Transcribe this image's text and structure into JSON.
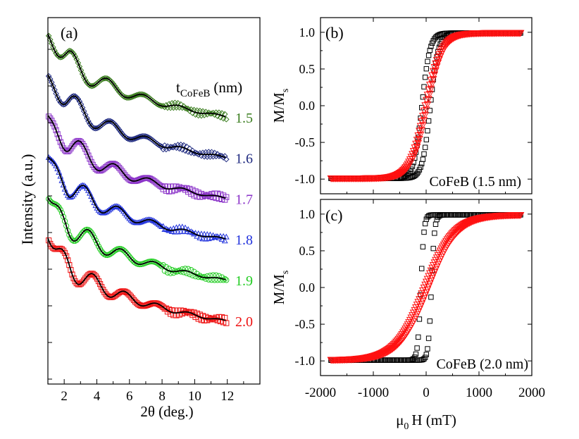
{
  "chart_data": [
    {
      "id": "a",
      "type": "line",
      "panel_label": "(a)",
      "xlabel": "2θ (deg.)",
      "ylabel": "Intensity (a.u.)",
      "xlim": [
        1,
        14
      ],
      "x_ticks": [
        2,
        4,
        6,
        8,
        10,
        12
      ],
      "legend_title": "t",
      "legend_title_sub": "CoFeB",
      "legend_title_unit": "(nm)",
      "series": [
        {
          "name": "1.5",
          "color": "#3a7d1e",
          "marker": "diamond",
          "offset": 0.0
        },
        {
          "name": "1.6",
          "color": "#1f2a80",
          "marker": "diamond",
          "offset": 1.0
        },
        {
          "name": "1.7",
          "color": "#8a32c8",
          "marker": "square",
          "offset": 2.0
        },
        {
          "name": "1.8",
          "color": "#2233dd",
          "marker": "triangle",
          "offset": 3.0
        },
        {
          "name": "1.9",
          "color": "#22cc22",
          "marker": "circle",
          "offset": 4.0
        },
        {
          "name": "2.0",
          "color": "#ee1111",
          "marker": "square",
          "offset": 5.0
        }
      ],
      "fit_color": "#000000"
    },
    {
      "id": "b",
      "type": "scatter",
      "panel_label": "(b)",
      "annotation": "CoFeB (1.5 nm)",
      "xlabel": "",
      "ylabel": "M/M",
      "ylabel_sub": "s",
      "xlim": [
        -2000,
        2000
      ],
      "ylim": [
        -1.2,
        1.2
      ],
      "y_ticks": [
        "1.0",
        "0.5",
        "0.0",
        "-0.5",
        "-1.0"
      ],
      "series": [
        {
          "name": "square",
          "color": "#000000",
          "marker": "square",
          "hc": 80,
          "width": 150
        },
        {
          "name": "triangle",
          "color": "#ff1111",
          "marker": "triangle-down",
          "hc": 20,
          "width": 300
        }
      ]
    },
    {
      "id": "c",
      "type": "scatter",
      "panel_label": "(c)",
      "annotation": "CoFeB (2.0 nm)",
      "xlabel": "H (mT)",
      "xlabel_prefix": "μ",
      "xlabel_sub": "0",
      "ylabel": "M/M",
      "ylabel_sub": "s",
      "xlim": [
        -2000,
        2000
      ],
      "ylim": [
        -1.2,
        1.2
      ],
      "x_ticks": [
        "-2000",
        "-1000",
        "0",
        "1000",
        "2000"
      ],
      "y_ticks": [
        "1.0",
        "0.5",
        "0.0",
        "-0.5",
        "-1.0"
      ],
      "series": [
        {
          "name": "square",
          "color": "#000000",
          "marker": "square",
          "hc": 100,
          "width": 60
        },
        {
          "name": "triangle",
          "color": "#ff1111",
          "marker": "triangle-down",
          "hc": 40,
          "width": 550
        }
      ]
    }
  ]
}
